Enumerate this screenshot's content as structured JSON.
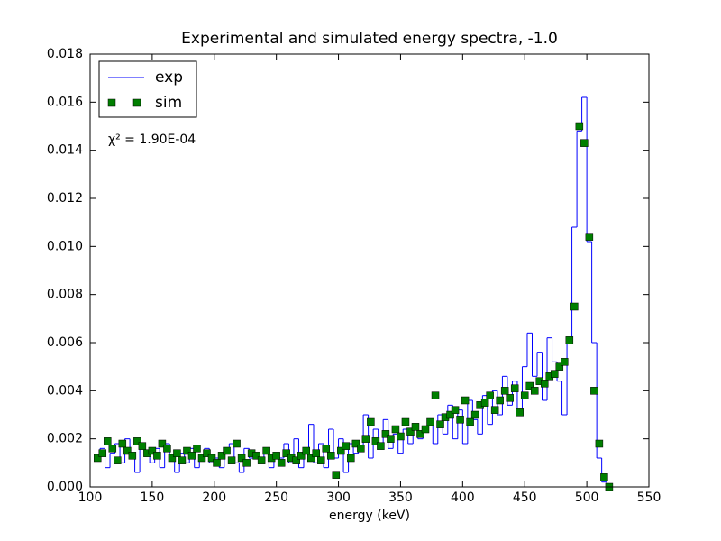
{
  "chart_data": {
    "type": "step-scatter",
    "title": "Experimental and simulated energy spectra, -1.0",
    "x_label": "energy (keV)",
    "annotation": "χ² = 1.90E-04",
    "legend": "upper left",
    "xlim": [
      100,
      550
    ],
    "xticks": [
      100,
      150,
      200,
      250,
      300,
      350,
      400,
      450,
      500,
      550
    ],
    "ylim": [
      0,
      0.018
    ],
    "yticks": [
      {
        "value": 0,
        "label": "0.000"
      },
      {
        "value": 0.002,
        "label": "0.002"
      },
      {
        "value": 0.004,
        "label": "0.004"
      },
      {
        "value": 0.006,
        "label": "0.006"
      },
      {
        "value": 0.008,
        "label": "0.008"
      },
      {
        "value": 0.01,
        "label": "0.010"
      },
      {
        "value": 0.012,
        "label": "0.012"
      },
      {
        "value": 0.014,
        "label": "0.014"
      },
      {
        "value": 0.016,
        "label": "0.016"
      },
      {
        "value": 0.018,
        "label": "0.018"
      }
    ],
    "x": [
      106,
      110,
      114,
      118,
      122,
      126,
      130,
      134,
      138,
      142,
      146,
      150,
      154,
      158,
      162,
      166,
      170,
      174,
      178,
      182,
      186,
      190,
      194,
      198,
      202,
      206,
      210,
      214,
      218,
      222,
      226,
      230,
      234,
      238,
      242,
      246,
      250,
      254,
      258,
      262,
      266,
      270,
      274,
      278,
      282,
      286,
      290,
      294,
      298,
      302,
      306,
      310,
      314,
      318,
      322,
      326,
      330,
      334,
      338,
      342,
      346,
      350,
      354,
      358,
      362,
      366,
      370,
      374,
      378,
      382,
      386,
      390,
      394,
      398,
      402,
      406,
      410,
      414,
      418,
      422,
      426,
      430,
      434,
      438,
      442,
      446,
      450,
      454,
      458,
      462,
      466,
      470,
      474,
      478,
      482,
      486,
      490,
      494,
      498,
      502,
      506,
      510,
      514,
      518
    ],
    "series": [
      {
        "name": "exp",
        "color": "#0000ff",
        "style": "step",
        "values": [
          0.0012,
          0.0016,
          0.0008,
          0.0014,
          0.0018,
          0.001,
          0.002,
          0.0012,
          0.0006,
          0.0016,
          0.0014,
          0.001,
          0.0016,
          0.0008,
          0.0018,
          0.0012,
          0.0006,
          0.0014,
          0.001,
          0.0016,
          0.0008,
          0.0012,
          0.0016,
          0.001,
          0.0012,
          0.0008,
          0.0014,
          0.0018,
          0.001,
          0.0006,
          0.0016,
          0.0012,
          0.0014,
          0.001,
          0.0016,
          0.0008,
          0.0014,
          0.0012,
          0.0018,
          0.001,
          0.002,
          0.0008,
          0.0014,
          0.0026,
          0.001,
          0.0018,
          0.0008,
          0.0024,
          0.0012,
          0.002,
          0.0006,
          0.0018,
          0.0014,
          0.0016,
          0.003,
          0.0012,
          0.0024,
          0.0018,
          0.0028,
          0.0016,
          0.0022,
          0.0014,
          0.0024,
          0.0018,
          0.0026,
          0.002,
          0.0024,
          0.0026,
          0.0018,
          0.003,
          0.0022,
          0.0034,
          0.002,
          0.0032,
          0.0018,
          0.0036,
          0.0028,
          0.0022,
          0.0038,
          0.0026,
          0.004,
          0.003,
          0.0046,
          0.0034,
          0.0044,
          0.0032,
          0.005,
          0.0064,
          0.0046,
          0.0056,
          0.0036,
          0.0062,
          0.0052,
          0.0044,
          0.003,
          0.006,
          0.0108,
          0.0148,
          0.0162,
          0.0102,
          0.006,
          0.0012,
          0.0002,
          0.0
        ]
      },
      {
        "name": "sim",
        "color": "#007f00",
        "style": "markers",
        "values": [
          0.0012,
          0.0014,
          0.0019,
          0.0016,
          0.0011,
          0.0018,
          0.0015,
          0.0013,
          0.0019,
          0.0017,
          0.0014,
          0.0015,
          0.0013,
          0.0018,
          0.0016,
          0.0012,
          0.0014,
          0.0011,
          0.0015,
          0.0013,
          0.0016,
          0.0012,
          0.0014,
          0.0012,
          0.001,
          0.0013,
          0.0015,
          0.0011,
          0.0018,
          0.0012,
          0.001,
          0.0014,
          0.0013,
          0.0011,
          0.0015,
          0.0012,
          0.0013,
          0.001,
          0.0014,
          0.0012,
          0.0011,
          0.0013,
          0.0015,
          0.0012,
          0.0014,
          0.0011,
          0.0016,
          0.0013,
          0.0005,
          0.0015,
          0.0017,
          0.0012,
          0.0018,
          0.0016,
          0.002,
          0.0027,
          0.0019,
          0.0017,
          0.0022,
          0.002,
          0.0024,
          0.0021,
          0.0027,
          0.0023,
          0.0025,
          0.0022,
          0.0024,
          0.0027,
          0.0038,
          0.0026,
          0.0029,
          0.003,
          0.0032,
          0.0028,
          0.0036,
          0.0027,
          0.003,
          0.0034,
          0.0035,
          0.0038,
          0.0032,
          0.0036,
          0.004,
          0.0037,
          0.0041,
          0.0031,
          0.0038,
          0.0042,
          0.004,
          0.0044,
          0.0043,
          0.0046,
          0.0047,
          0.005,
          0.0052,
          0.0061,
          0.0075,
          0.015,
          0.0143,
          0.0104,
          0.004,
          0.0018,
          0.0004,
          0.0
        ]
      }
    ]
  }
}
